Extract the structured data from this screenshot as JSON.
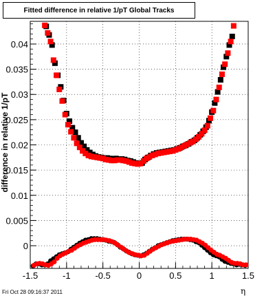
{
  "title": "Fitted difference in relative 1/pT  Global Tracks",
  "timestamp": "Fri Oct 28 09:16:37 2011",
  "chart_data": {
    "type": "scatter",
    "title": "Fitted difference in relative 1/pT  Global Tracks",
    "xlabel": "η",
    "ylabel": "difference in relative 1/pT",
    "xlim": [
      -1.5,
      1.5
    ],
    "ylim": [
      -0.0045,
      0.0445
    ],
    "xticks": [
      "-1.5",
      "-1",
      "-0.5",
      "0",
      "0.5",
      "1",
      "1.5"
    ],
    "yticks": [
      "0",
      "0.005",
      "0.01",
      "0.015",
      "0.02",
      "0.025",
      "0.03",
      "0.035",
      "0.04"
    ],
    "grid": true,
    "colors": {
      "black_series": "#000000",
      "red_series": "#ff0000"
    },
    "series": [
      {
        "color": "#000000",
        "marker": "square",
        "x": [
          -1.28,
          -1.24,
          -1.2,
          -1.16,
          -1.12,
          -1.08,
          -1.04,
          -1.0,
          -0.96,
          -0.92,
          -0.88,
          -0.84,
          -0.8,
          -0.76,
          -0.72,
          -0.68,
          -0.64,
          -0.6,
          -0.56,
          -0.52,
          -0.48,
          -0.44,
          -0.4,
          -0.36,
          -0.32,
          -0.28,
          -0.24,
          -0.2,
          -0.16,
          -0.12,
          -0.08,
          -0.04,
          0.0,
          0.04,
          0.08,
          0.12,
          0.16,
          0.2,
          0.24,
          0.28,
          0.32,
          0.36,
          0.4,
          0.44,
          0.48,
          0.52,
          0.56,
          0.6,
          0.64,
          0.68,
          0.72,
          0.76,
          0.8,
          0.84,
          0.88,
          0.92,
          0.96,
          1.0,
          1.04,
          1.08,
          1.12,
          1.16,
          1.2,
          1.24,
          1.28
        ],
        "y": [
          0.0435,
          0.0418,
          0.0398,
          0.0362,
          0.0338,
          0.0315,
          0.0288,
          0.0262,
          0.0247,
          0.0234,
          0.0225,
          0.0214,
          0.0204,
          0.0197,
          0.019,
          0.0185,
          0.0181,
          0.0178,
          0.0176,
          0.0175,
          0.0174,
          0.0174,
          0.0173,
          0.0172,
          0.0173,
          0.0172,
          0.0172,
          0.0171,
          0.0169,
          0.0168,
          0.0166,
          0.0164,
          0.0163,
          0.0164,
          0.0171,
          0.0175,
          0.0179,
          0.0182,
          0.0184,
          0.0185,
          0.0186,
          0.0187,
          0.0188,
          0.0189,
          0.019,
          0.0192,
          0.0194,
          0.0197,
          0.0199,
          0.0202,
          0.0206,
          0.0209,
          0.0214,
          0.022,
          0.0227,
          0.0235,
          0.0248,
          0.0265,
          0.0283,
          0.0305,
          0.0329,
          0.0354,
          0.0375,
          0.0398,
          0.0415
        ]
      },
      {
        "color": "#ff0000",
        "marker": "square",
        "x": [
          -1.3,
          -1.26,
          -1.22,
          -1.18,
          -1.14,
          -1.1,
          -1.06,
          -1.02,
          -0.98,
          -0.94,
          -0.9,
          -0.86,
          -0.82,
          -0.78,
          -0.74,
          -0.7,
          -0.66,
          -0.62,
          -0.58,
          -0.54,
          -0.5,
          -0.46,
          -0.42,
          -0.38,
          -0.34,
          -0.3,
          -0.26,
          -0.22,
          -0.18,
          -0.14,
          -0.1,
          -0.06,
          -0.02,
          0.02,
          0.06,
          0.1,
          0.14,
          0.18,
          0.22,
          0.26,
          0.3,
          0.34,
          0.38,
          0.42,
          0.46,
          0.5,
          0.54,
          0.58,
          0.62,
          0.66,
          0.7,
          0.74,
          0.78,
          0.82,
          0.86,
          0.9,
          0.94,
          0.98,
          1.02,
          1.06,
          1.1,
          1.14,
          1.18,
          1.22,
          1.26,
          1.3
        ],
        "y": [
          0.0437,
          0.0422,
          0.0405,
          0.0368,
          0.0338,
          0.031,
          0.0287,
          0.026,
          0.024,
          0.0226,
          0.0214,
          0.0203,
          0.0195,
          0.0188,
          0.0183,
          0.0179,
          0.0177,
          0.0176,
          0.0175,
          0.0174,
          0.0173,
          0.0171,
          0.017,
          0.0169,
          0.0169,
          0.017,
          0.017,
          0.0169,
          0.0168,
          0.0166,
          0.0164,
          0.0163,
          0.0162,
          0.0163,
          0.0168,
          0.0173,
          0.0176,
          0.0179,
          0.0181,
          0.0183,
          0.0184,
          0.0185,
          0.0186,
          0.0187,
          0.0188,
          0.019,
          0.0192,
          0.0195,
          0.0198,
          0.0201,
          0.0204,
          0.0207,
          0.0211,
          0.0216,
          0.0222,
          0.0229,
          0.0238,
          0.0253,
          0.0268,
          0.029,
          0.0314,
          0.034,
          0.036,
          0.0382,
          0.0405,
          0.0436
        ]
      },
      {
        "color": "#000000",
        "marker": "circle",
        "x": [
          -1.46,
          -1.42,
          -1.38,
          -1.34,
          -1.3,
          -1.26,
          -1.22,
          -1.18,
          -1.14,
          -1.1,
          -1.06,
          -1.02,
          -0.98,
          -0.94,
          -0.9,
          -0.86,
          -0.82,
          -0.78,
          -0.74,
          -0.7,
          -0.66,
          -0.62,
          -0.58,
          -0.54,
          -0.5,
          -0.46,
          -0.42,
          -0.38,
          -0.34,
          -0.3,
          -0.26,
          -0.22,
          -0.18,
          -0.14,
          -0.1,
          -0.06,
          -0.02,
          0.02,
          0.06,
          0.1,
          0.14,
          0.18,
          0.22,
          0.26,
          0.3,
          0.34,
          0.38,
          0.42,
          0.46,
          0.5,
          0.54,
          0.58,
          0.62,
          0.66,
          0.7,
          0.74,
          0.78,
          0.82,
          0.86,
          0.9,
          0.94,
          0.98,
          1.02,
          1.06,
          1.1,
          1.14,
          1.18,
          1.22,
          1.26,
          1.3,
          1.34,
          1.38,
          1.42,
          1.46
        ],
        "y": [
          -0.004,
          -0.0036,
          -0.0036,
          -0.0038,
          -0.0038,
          -0.0036,
          -0.003,
          -0.0026,
          -0.0022,
          -0.0018,
          -0.0016,
          -0.0014,
          -0.0012,
          -0.0007,
          -0.0003,
          0.0001,
          0.0005,
          0.0008,
          0.0011,
          0.0012,
          0.0014,
          0.0014,
          0.0014,
          0.0013,
          0.0012,
          0.0011,
          0.0009,
          0.0008,
          0.0006,
          0.0002,
          -0.0003,
          -0.0006,
          -0.001,
          -0.0013,
          -0.0016,
          -0.0018,
          -0.0019,
          -0.002,
          -0.0018,
          -0.0015,
          -0.0011,
          -0.0007,
          -0.0004,
          0.0,
          0.0002,
          0.0004,
          0.0006,
          0.0008,
          0.001,
          0.0011,
          0.0012,
          0.0013,
          0.0013,
          0.0013,
          0.0012,
          0.0011,
          0.0008,
          0.0006,
          0.0001,
          -0.0004,
          -0.0009,
          -0.0014,
          -0.0018,
          -0.002,
          -0.0022,
          -0.0027,
          -0.0031,
          -0.0033,
          -0.0035,
          -0.0036,
          -0.0038,
          -0.0037,
          -0.0038,
          -0.0039
        ]
      },
      {
        "color": "#ff0000",
        "marker": "circle",
        "x": [
          -1.45,
          -1.41,
          -1.37,
          -1.33,
          -1.29,
          -1.25,
          -1.21,
          -1.17,
          -1.13,
          -1.09,
          -1.05,
          -1.01,
          -0.97,
          -0.93,
          -0.89,
          -0.85,
          -0.81,
          -0.77,
          -0.73,
          -0.69,
          -0.65,
          -0.61,
          -0.57,
          -0.53,
          -0.49,
          -0.45,
          -0.41,
          -0.37,
          -0.33,
          -0.29,
          -0.25,
          -0.21,
          -0.17,
          -0.13,
          -0.09,
          -0.05,
          -0.01,
          0.03,
          0.07,
          0.11,
          0.15,
          0.19,
          0.23,
          0.27,
          0.31,
          0.35,
          0.39,
          0.43,
          0.47,
          0.51,
          0.55,
          0.59,
          0.63,
          0.67,
          0.71,
          0.75,
          0.79,
          0.83,
          0.87,
          0.91,
          0.95,
          0.99,
          1.03,
          1.07,
          1.11,
          1.15,
          1.19,
          1.23,
          1.27,
          1.31,
          1.35,
          1.39,
          1.43,
          1.47
        ],
        "y": [
          -0.0039,
          -0.0036,
          -0.0035,
          -0.0036,
          -0.0038,
          -0.0039,
          -0.0036,
          -0.0032,
          -0.0025,
          -0.002,
          -0.0017,
          -0.0014,
          -0.0011,
          -0.0009,
          -0.0005,
          -0.0001,
          0.0002,
          0.0005,
          0.0007,
          0.0009,
          0.0011,
          0.0012,
          0.0012,
          0.0012,
          0.0012,
          0.0011,
          0.001,
          0.0008,
          0.0005,
          0.0001,
          -0.0003,
          -0.0007,
          -0.0011,
          -0.0014,
          -0.0016,
          -0.0018,
          -0.0019,
          -0.002,
          -0.0019,
          -0.0015,
          -0.0011,
          -0.0007,
          -0.0004,
          -0.0001,
          0.0002,
          0.0004,
          0.0006,
          0.0008,
          0.0009,
          0.001,
          0.0011,
          0.0012,
          0.0013,
          0.0013,
          0.0013,
          0.0012,
          0.0011,
          0.0008,
          0.0005,
          0.0001,
          -0.0004,
          -0.0009,
          -0.0013,
          -0.0017,
          -0.0019,
          -0.0022,
          -0.0025,
          -0.0029,
          -0.0033,
          -0.0035,
          -0.0035,
          -0.0036,
          -0.0038,
          -0.0038
        ]
      }
    ]
  }
}
